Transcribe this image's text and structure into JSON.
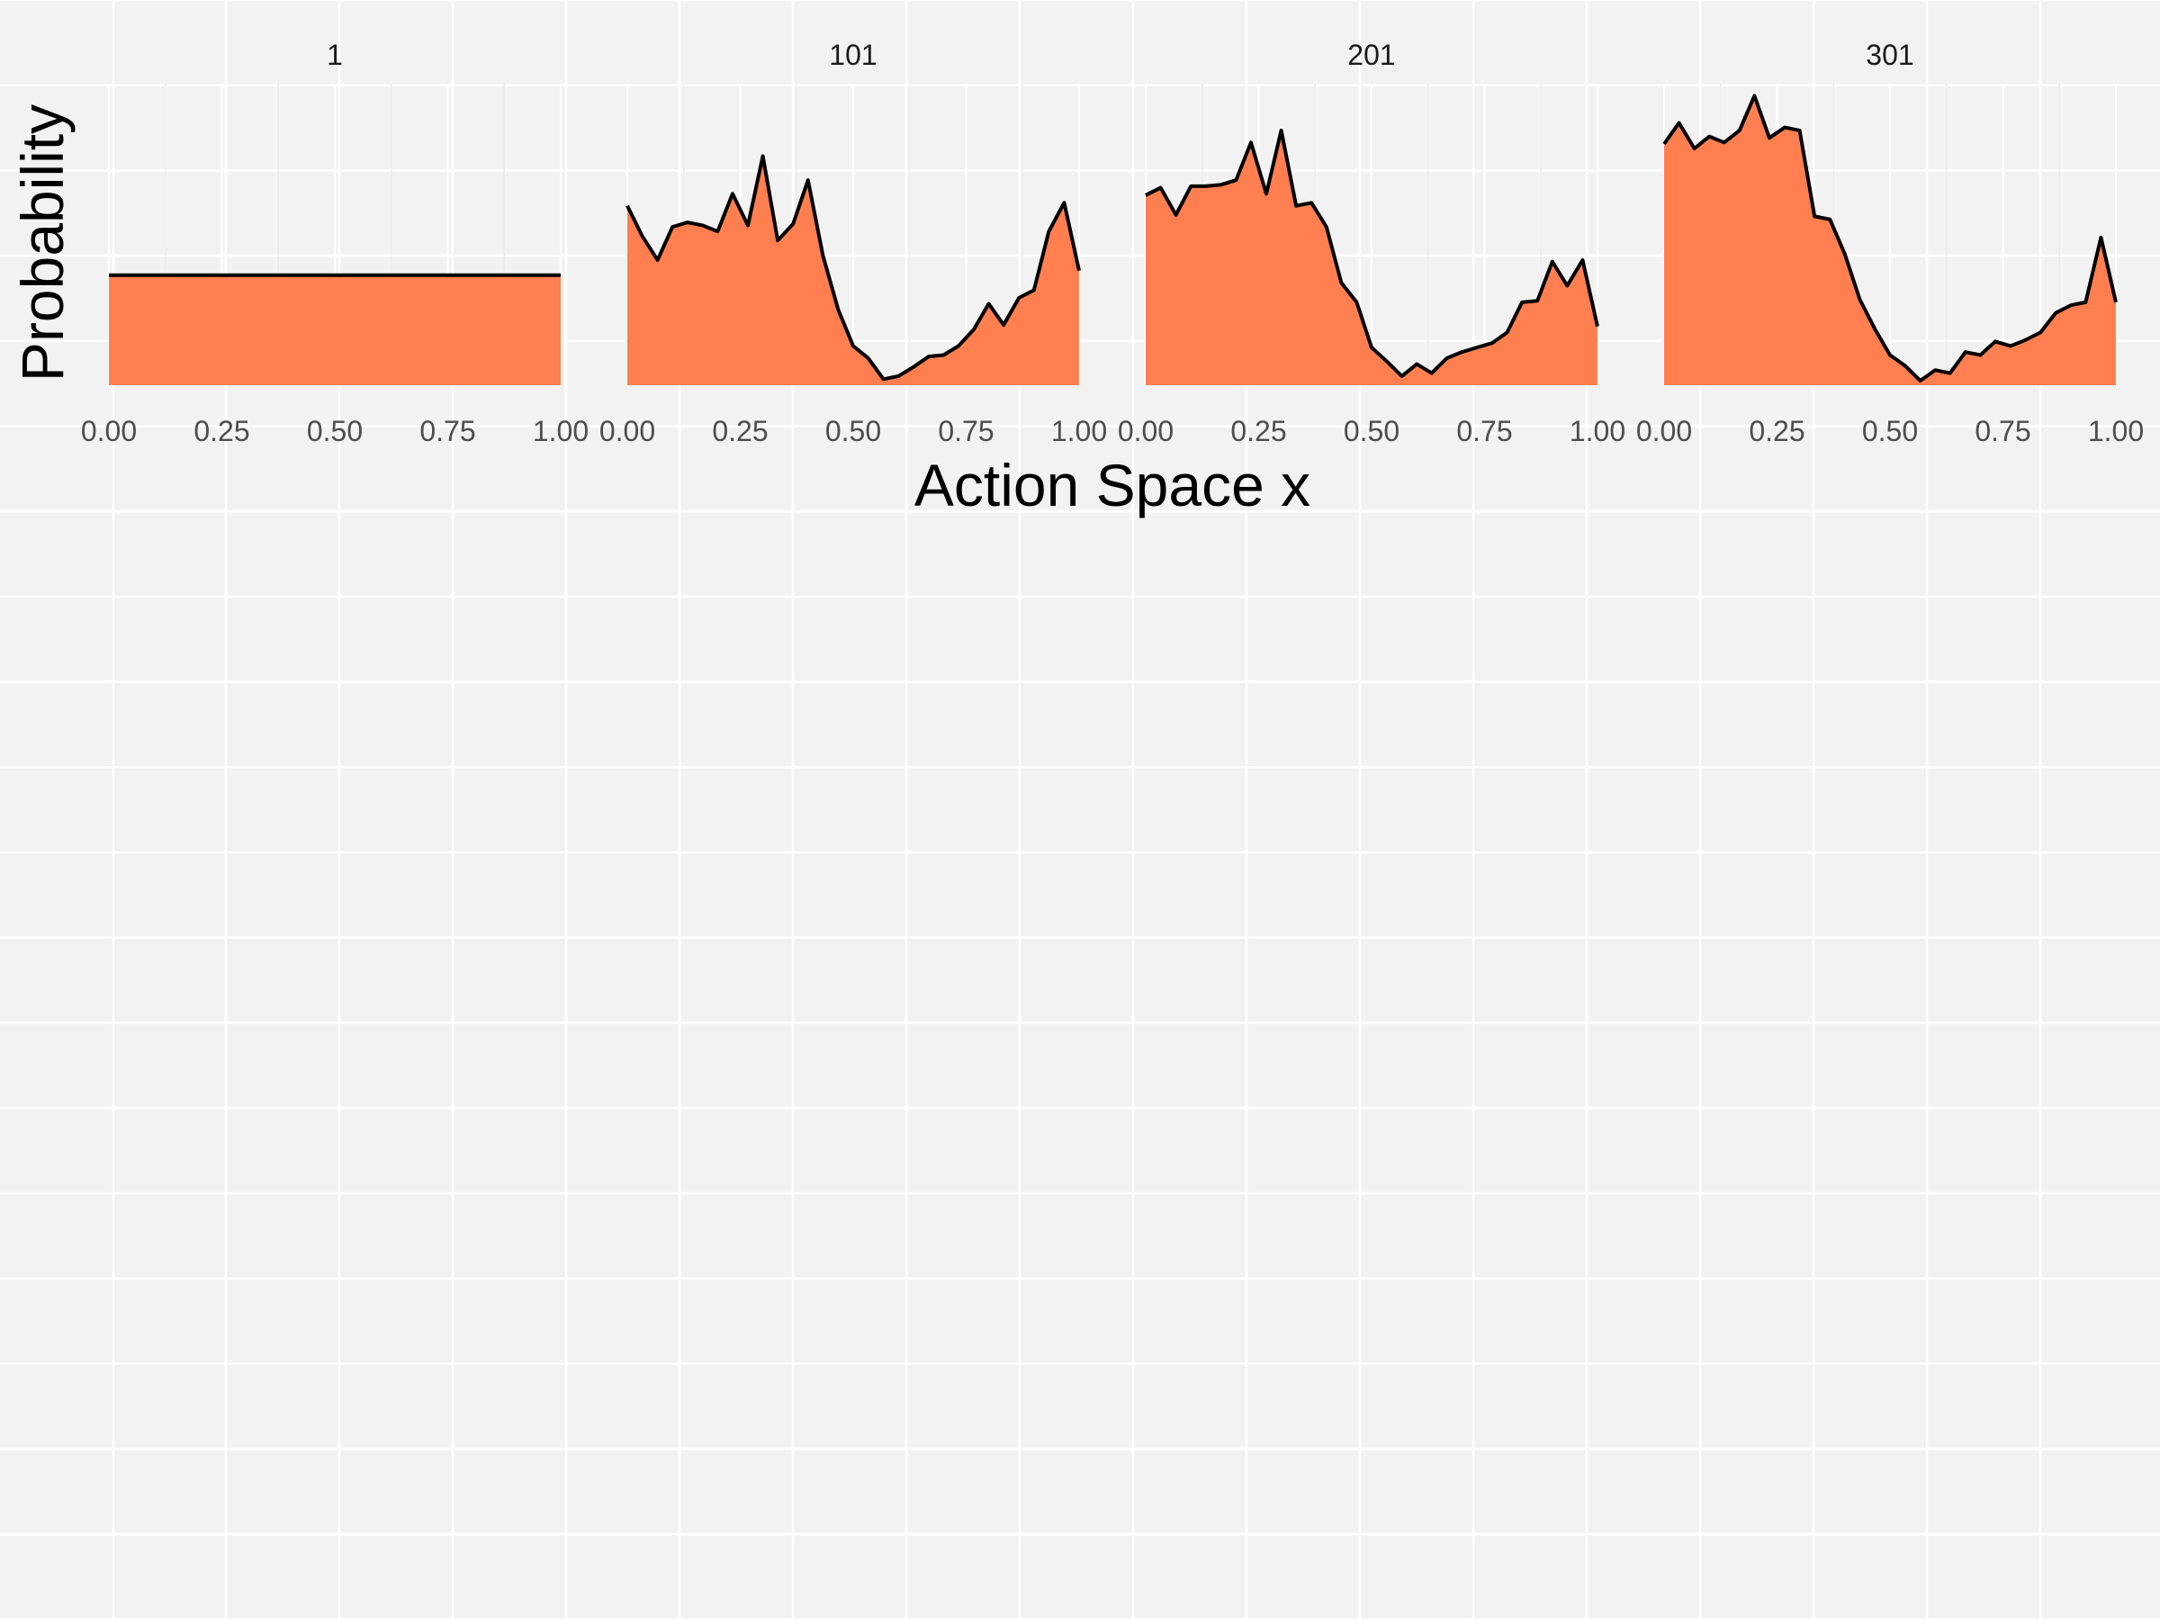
{
  "chart_data": {
    "type": "area",
    "xlabel": "Action Space x",
    "ylabel": "Probability",
    "xlim": [
      0,
      1
    ],
    "x_ticks": [
      "0.00",
      "0.25",
      "0.50",
      "0.75",
      "1.00"
    ],
    "fill_color": "#ff7f50",
    "line_color": "#000000",
    "background_color": "#f2f2f2",
    "panels": [
      {
        "label": "1",
        "x": [
          0.0,
          1.0
        ],
        "y": [
          0.73,
          0.73
        ]
      },
      {
        "label": "101",
        "x": [
          0.0,
          0.033,
          0.067,
          0.1,
          0.133,
          0.167,
          0.2,
          0.233,
          0.267,
          0.3,
          0.333,
          0.367,
          0.4,
          0.433,
          0.467,
          0.5,
          0.533,
          0.567,
          0.6,
          0.633,
          0.667,
          0.7,
          0.733,
          0.767,
          0.8,
          0.833,
          0.867,
          0.9,
          0.933,
          0.967,
          1.0
        ],
        "y": [
          1.19,
          0.99,
          0.83,
          1.05,
          1.08,
          1.06,
          1.02,
          1.27,
          1.06,
          1.52,
          0.96,
          1.07,
          1.36,
          0.86,
          0.5,
          0.26,
          0.18,
          0.04,
          0.06,
          0.12,
          0.19,
          0.2,
          0.26,
          0.37,
          0.54,
          0.4,
          0.58,
          0.63,
          1.02,
          1.21,
          0.76
        ]
      },
      {
        "label": "201",
        "x": [
          0.0,
          0.033,
          0.067,
          0.1,
          0.133,
          0.167,
          0.2,
          0.233,
          0.267,
          0.3,
          0.333,
          0.367,
          0.4,
          0.433,
          0.467,
          0.5,
          0.533,
          0.567,
          0.6,
          0.633,
          0.667,
          0.7,
          0.733,
          0.767,
          0.8,
          0.833,
          0.867,
          0.9,
          0.933,
          0.967,
          1.0
        ],
        "y": [
          1.26,
          1.31,
          1.13,
          1.32,
          1.32,
          1.33,
          1.36,
          1.61,
          1.27,
          1.69,
          1.19,
          1.21,
          1.05,
          0.68,
          0.55,
          0.25,
          0.16,
          0.06,
          0.14,
          0.08,
          0.18,
          0.22,
          0.25,
          0.28,
          0.35,
          0.55,
          0.56,
          0.82,
          0.66,
          0.83,
          0.39
        ]
      },
      {
        "label": "301",
        "x": [
          0.0,
          0.033,
          0.067,
          0.1,
          0.133,
          0.167,
          0.2,
          0.233,
          0.267,
          0.3,
          0.333,
          0.367,
          0.4,
          0.433,
          0.467,
          0.5,
          0.533,
          0.567,
          0.6,
          0.633,
          0.667,
          0.7,
          0.733,
          0.767,
          0.8,
          0.833,
          0.867,
          0.9,
          0.933,
          0.967,
          1.0
        ],
        "y": [
          1.6,
          1.74,
          1.57,
          1.65,
          1.61,
          1.69,
          1.92,
          1.64,
          1.71,
          1.69,
          1.12,
          1.1,
          0.87,
          0.57,
          0.37,
          0.2,
          0.13,
          0.03,
          0.1,
          0.08,
          0.22,
          0.2,
          0.29,
          0.26,
          0.3,
          0.35,
          0.48,
          0.53,
          0.55,
          0.98,
          0.55
        ]
      }
    ]
  }
}
